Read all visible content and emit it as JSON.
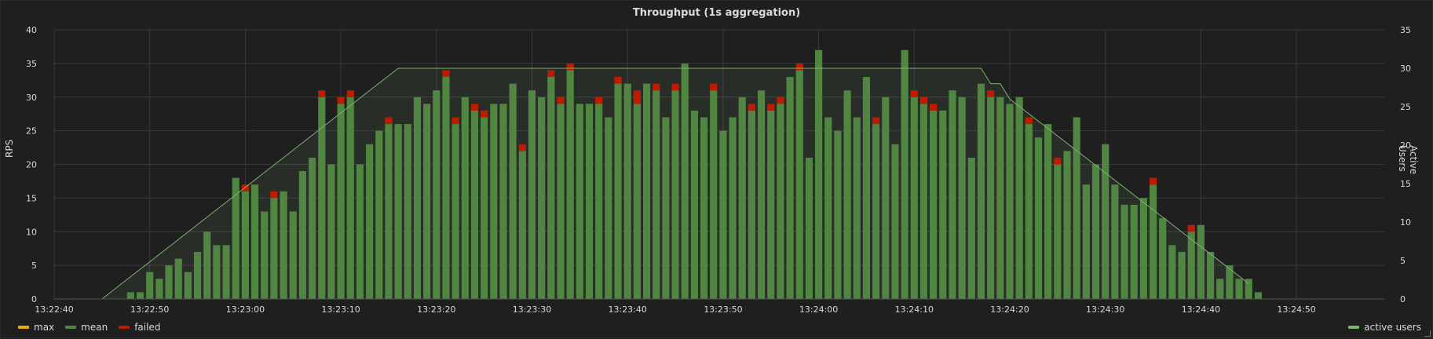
{
  "panel": {
    "title": "Throughput (1s aggregation)"
  },
  "legend": {
    "items": [
      {
        "label": "max",
        "color": "#e5ac0e"
      },
      {
        "label": "mean",
        "color": "#508642"
      },
      {
        "label": "failed",
        "color": "#bf1b00"
      }
    ],
    "right": {
      "label": "active users",
      "color": "#7eb26d"
    }
  },
  "chart_data": {
    "type": "bar",
    "title": "Throughput (1s aggregation)",
    "ylabel": "RPS",
    "y2label": "Active Users",
    "ylim": [
      0,
      40
    ],
    "y2lim": [
      0,
      35
    ],
    "yticks": [
      0,
      5,
      10,
      15,
      20,
      25,
      30,
      35,
      40
    ],
    "y2ticks": [
      0,
      5,
      10,
      15,
      20,
      25,
      30,
      35
    ],
    "xticks": [
      "13:22:40",
      "13:22:50",
      "13:23:00",
      "13:23:10",
      "13:23:20",
      "13:23:30",
      "13:23:40",
      "13:23:50",
      "13:24:00",
      "13:24:10",
      "13:24:20",
      "13:24:30",
      "13:24:40",
      "13:24:50"
    ],
    "grid": true,
    "bar_start_time": "13:22:48",
    "bar_interval_seconds": 1,
    "series": [
      {
        "name": "mean",
        "color": "#508642",
        "values": [
          1,
          1,
          4,
          3,
          5,
          6,
          4,
          7,
          10,
          8,
          8,
          18,
          16,
          17,
          13,
          15,
          16,
          13,
          19,
          21,
          30,
          20,
          29,
          30,
          20,
          23,
          25,
          26,
          26,
          26,
          30,
          29,
          31,
          33,
          26,
          30,
          28,
          27,
          29,
          29,
          32,
          22,
          31,
          30,
          33,
          29,
          34,
          29,
          29,
          29,
          27,
          32,
          32,
          29,
          32,
          31,
          27,
          31,
          35,
          28,
          27,
          31,
          25,
          27,
          30,
          28,
          31,
          28,
          29,
          33,
          34,
          21,
          37,
          27,
          25,
          31,
          27,
          33,
          26,
          30,
          23,
          37,
          30,
          29,
          28,
          28,
          31,
          30,
          21,
          32,
          30,
          30,
          29,
          30,
          26,
          24,
          26,
          20,
          22,
          27,
          17,
          20,
          23,
          17,
          14,
          14,
          15,
          17,
          12,
          8,
          7,
          10,
          11,
          7,
          3,
          5,
          3,
          3,
          1
        ]
      },
      {
        "name": "failed",
        "color": "#bf1b00",
        "values": [
          0,
          0,
          0,
          0,
          0,
          0,
          0,
          0,
          0,
          0,
          0,
          0,
          1,
          0,
          0,
          1,
          0,
          0,
          0,
          0,
          1,
          0,
          1,
          1,
          0,
          0,
          0,
          1,
          0,
          0,
          0,
          0,
          0,
          1,
          1,
          0,
          1,
          1,
          0,
          0,
          0,
          1,
          0,
          0,
          1,
          1,
          1,
          0,
          0,
          1,
          0,
          1,
          0,
          2,
          0,
          1,
          0,
          1,
          0,
          0,
          0,
          1,
          0,
          0,
          0,
          1,
          0,
          1,
          1,
          0,
          1,
          0,
          0,
          0,
          0,
          0,
          0,
          0,
          1,
          0,
          0,
          0,
          1,
          1,
          1,
          0,
          0,
          0,
          0,
          0,
          1,
          0,
          0,
          0,
          1,
          0,
          0,
          1,
          0,
          0,
          0,
          0,
          0,
          0,
          0,
          0,
          0,
          1,
          0,
          0,
          0,
          1,
          0,
          0,
          0,
          0,
          0,
          0,
          0,
          0
        ]
      },
      {
        "name": "active users",
        "axis": "right",
        "color": "#7eb26d",
        "points": [
          {
            "t": "13:22:45",
            "v": 0
          },
          {
            "t": "13:23:16",
            "v": 30
          },
          {
            "t": "13:24:17",
            "v": 30
          },
          {
            "t": "13:24:18",
            "v": 28
          },
          {
            "t": "13:24:19",
            "v": 28
          },
          {
            "t": "13:24:20",
            "v": 26
          },
          {
            "t": "13:24:45",
            "v": 2
          }
        ]
      }
    ]
  }
}
